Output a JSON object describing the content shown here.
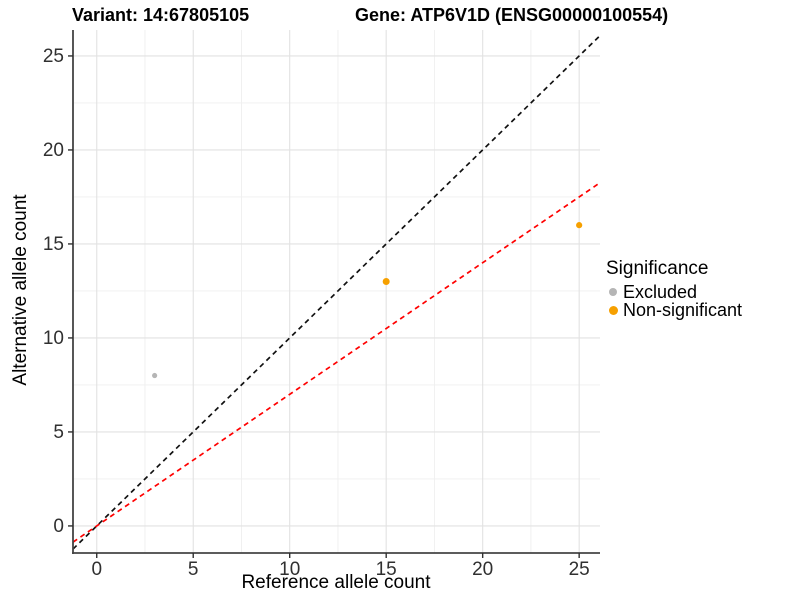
{
  "header": {
    "title_left": "Variant: 14:67805105",
    "title_right": "Gene: ATP6V1D (ENSG00000100554)"
  },
  "chart_data": {
    "type": "scatter",
    "title_left": "Variant: 14:67805105",
    "title_right": "Gene: ATP6V1D (ENSG00000100554)",
    "xlabel": "Reference allele count",
    "ylabel": "Alternative allele count",
    "xlim": [
      -1.23,
      26.08
    ],
    "ylim": [
      -1.44,
      26.38
    ],
    "xticks": [
      0,
      5,
      10,
      15,
      20,
      25
    ],
    "yticks": [
      0,
      5,
      10,
      15,
      20,
      25
    ],
    "xminor": [
      2.5,
      7.5,
      12.5,
      17.5,
      22.5
    ],
    "yminor": [
      2.5,
      7.5,
      12.5,
      17.5,
      22.5
    ],
    "grid": true,
    "colors": {
      "excluded": "#B5B5B5",
      "non_significant": "#F6A000",
      "identity_line": "#111111",
      "ratio_line": "#FF0000",
      "grid_major": "#E2E2E2",
      "grid_minor": "#EFEFEF",
      "axis_line": "#444444",
      "tick_text": "#303030"
    },
    "series": [
      {
        "name": "Excluded",
        "color": "#B5B5B5",
        "points": [
          {
            "x": 3,
            "y": 8,
            "r": 2.6
          }
        ]
      },
      {
        "name": "Non-significant",
        "color": "#F6A000",
        "points": [
          {
            "x": 15,
            "y": 13,
            "r": 3.5
          },
          {
            "x": 25,
            "y": 16,
            "r": 3.1
          }
        ]
      }
    ],
    "lines": [
      {
        "name": "identity-line",
        "slope": 1.0,
        "intercept": 0,
        "color": "#111111",
        "style": "dashed"
      },
      {
        "name": "ratio-line",
        "slope": 0.7,
        "intercept": 0,
        "color": "#FF0000",
        "style": "dashed"
      }
    ],
    "legend": {
      "title": "Significance",
      "position": "right",
      "entries": [
        {
          "label": "Excluded",
          "color": "#B5B5B5"
        },
        {
          "label": "Non-significant",
          "color": "#F6A000"
        }
      ]
    }
  }
}
